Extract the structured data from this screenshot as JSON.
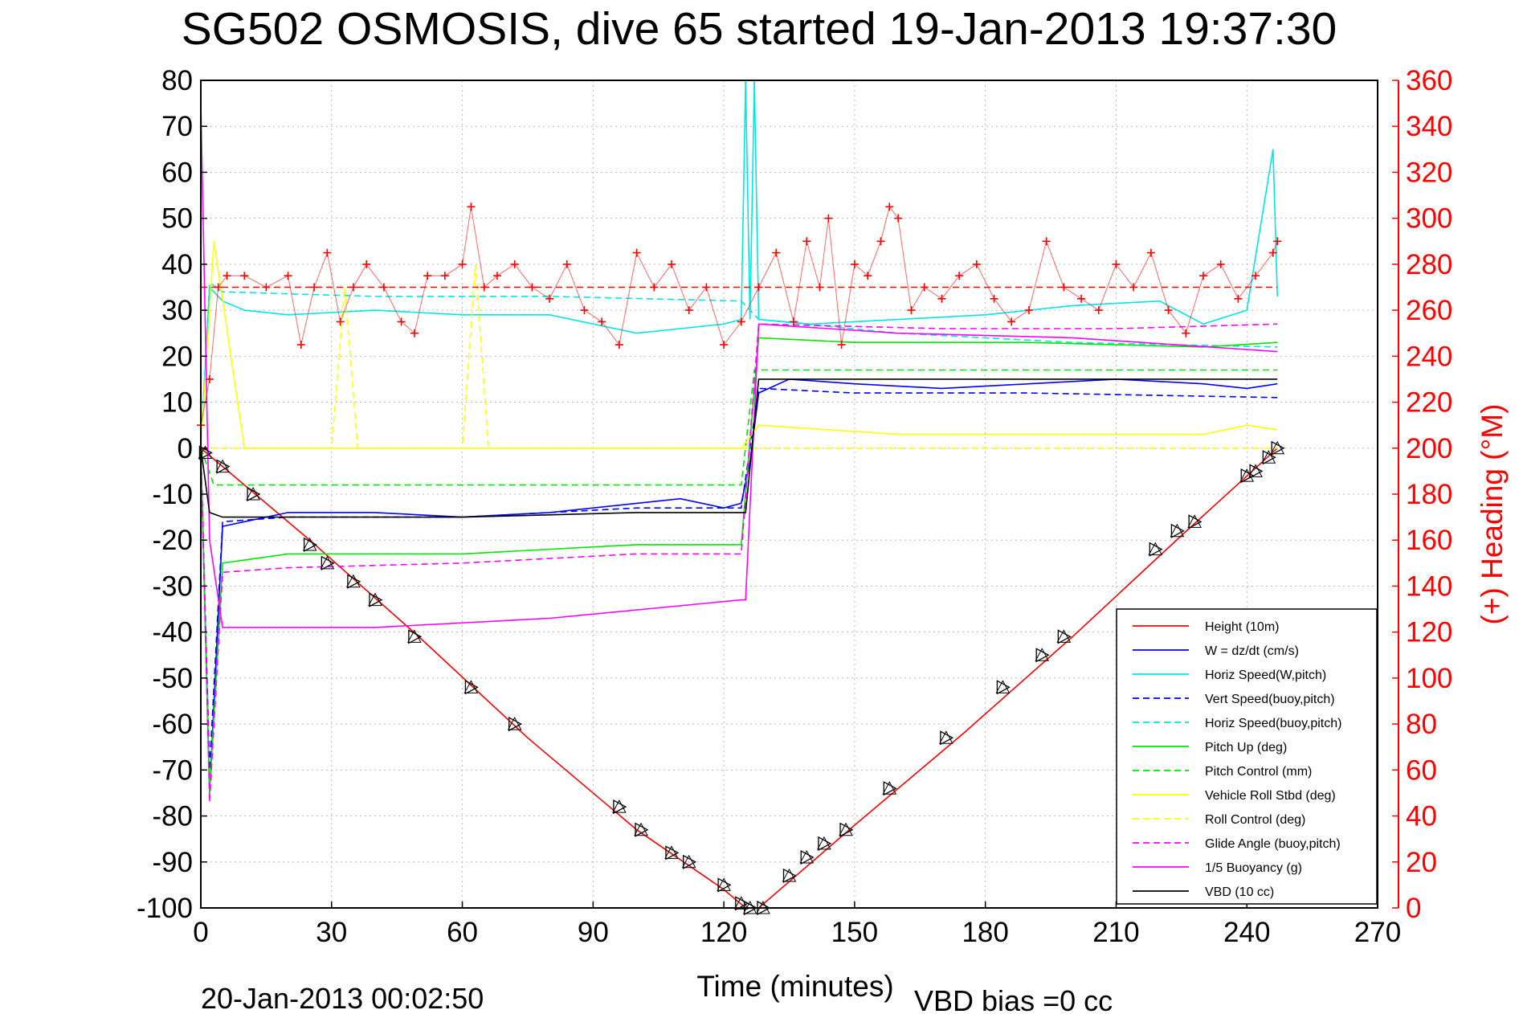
{
  "chart_data": {
    "type": "line",
    "title": "SG502 OSMOSIS, dive 65 started 19-Jan-2013 19:37:30",
    "xlabel": "Time (minutes)",
    "ylabel": "",
    "y2label": "(+) Heading (°M)",
    "xlim": [
      0,
      270
    ],
    "ylim": [
      -100,
      80
    ],
    "y2lim": [
      0,
      360
    ],
    "xticks": [
      0,
      30,
      60,
      90,
      120,
      150,
      180,
      210,
      240,
      270
    ],
    "yticks": [
      80,
      70,
      60,
      50,
      40,
      30,
      20,
      10,
      0,
      -10,
      -20,
      -30,
      -40,
      -50,
      -60,
      -70,
      -80,
      -90,
      -100
    ],
    "y2ticks": [
      360,
      340,
      320,
      300,
      280,
      260,
      240,
      220,
      200,
      180,
      160,
      140,
      120,
      100,
      80,
      60,
      40,
      20,
      0
    ],
    "grid": true,
    "legend_position": "bottom-right",
    "end_time": "20-Jan-2013 00:02:50",
    "vbd_bias": "VBD bias =0 cc",
    "colors": {
      "height": "#ff0000",
      "w": "#0000ff",
      "horiz_speed": "#00e5e5",
      "pitch": "#00e600",
      "roll": "#ffff00",
      "glide": "#ff00ff",
      "vbd": "#000000",
      "heading": "#ff0000"
    },
    "series": [
      {
        "name": "Height (10m)",
        "color": "#ff0000",
        "dash": "solid",
        "x": [
          0,
          25,
          50,
          75,
          100,
          120,
          125,
          128,
          150,
          175,
          200,
          225,
          247
        ],
        "y": [
          0,
          -20,
          -41,
          -63,
          -83,
          -96,
          -100,
          -100,
          -82,
          -62,
          -41,
          -19,
          0
        ]
      },
      {
        "name": "W = dz/dt (cm/s)",
        "color": "#0000ff",
        "dash": "solid",
        "x": [
          0,
          2,
          5,
          10,
          20,
          40,
          60,
          80,
          100,
          110,
          120,
          124,
          126,
          128,
          135,
          150,
          170,
          190,
          210,
          230,
          240,
          247
        ],
        "y": [
          0,
          -75,
          -17,
          -16,
          -14,
          -14,
          -15,
          -14,
          -12,
          -11,
          -13,
          -12,
          -3,
          12,
          15,
          14,
          13,
          14,
          15,
          14,
          13,
          14
        ]
      },
      {
        "name": "Horiz Speed(W,pitch)",
        "color": "#00e5e5",
        "dash": "solid",
        "x": [
          0,
          2,
          5,
          10,
          20,
          40,
          60,
          80,
          100,
          110,
          120,
          124,
          125,
          126,
          127,
          128,
          140,
          160,
          180,
          200,
          220,
          230,
          240,
          246,
          247
        ],
        "y": [
          0,
          35,
          32,
          30,
          29,
          30,
          29,
          29,
          25,
          26,
          27,
          28,
          80,
          28,
          80,
          28,
          27,
          28,
          29,
          31,
          32,
          27,
          30,
          65,
          33
        ]
      },
      {
        "name": "Vert Speed(buoy,pitch)",
        "color": "#0000ff",
        "dash": "dashed",
        "x": [
          0,
          2,
          5,
          20,
          60,
          100,
          124,
          128,
          150,
          190,
          247
        ],
        "y": [
          0,
          -70,
          -16,
          -15,
          -15,
          -13,
          -13,
          13,
          12,
          12,
          11
        ]
      },
      {
        "name": "Horiz Speed(buoy,pitch)",
        "color": "#00e5e5",
        "dash": "dashed",
        "x": [
          0,
          2,
          5,
          40,
          80,
          124,
          128,
          160,
          200,
          247
        ],
        "y": [
          0,
          36,
          34,
          33,
          33,
          32,
          28,
          25,
          23,
          22
        ]
      },
      {
        "name": "Pitch Up (deg)",
        "color": "#00e600",
        "dash": "solid",
        "x": [
          0,
          2,
          5,
          20,
          60,
          100,
          124,
          128,
          150,
          190,
          230,
          247
        ],
        "y": [
          0,
          -75,
          -25,
          -23,
          -23,
          -21,
          -21,
          24,
          23,
          23,
          22,
          23
        ]
      },
      {
        "name": "Pitch Control (mm)",
        "color": "#00e600",
        "dash": "dashed",
        "x": [
          0,
          3,
          124,
          127,
          247
        ],
        "y": [
          0,
          -8,
          -8,
          17,
          17
        ]
      },
      {
        "name": "Vehicle Roll Stbd (deg)",
        "color": "#ffff00",
        "dash": "solid",
        "x": [
          0,
          3,
          10,
          30,
          60,
          90,
          124,
          128,
          160,
          200,
          230,
          240,
          247
        ],
        "y": [
          0,
          45,
          0,
          0,
          0,
          0,
          0,
          5,
          3,
          3,
          3,
          5,
          4
        ]
      },
      {
        "name": "Roll Control (deg)",
        "color": "#ffff00",
        "dash": "dashed",
        "x": [
          0,
          5,
          30,
          33,
          36,
          60,
          63,
          66,
          124,
          128,
          160,
          200,
          247
        ],
        "y": [
          0,
          0,
          0,
          35,
          0,
          0,
          40,
          0,
          0,
          0,
          0,
          0,
          0
        ]
      },
      {
        "name": "Glide Angle (buoy,pitch)",
        "color": "#ff00ff",
        "dash": "dashed",
        "x": [
          0,
          2,
          5,
          20,
          60,
          100,
          124,
          128,
          170,
          210,
          247
        ],
        "y": [
          0,
          -77,
          -27,
          -26,
          -25,
          -23,
          -23,
          27,
          26,
          26,
          27
        ]
      },
      {
        "name": "1/5 Buoyancy (g)",
        "color": "#ff00ff",
        "dash": "solid",
        "x": [
          0,
          2,
          5,
          40,
          80,
          124,
          125,
          128,
          160,
          200,
          247
        ],
        "y": [
          75,
          -20,
          -39,
          -39,
          -37,
          -33,
          -33,
          27,
          25,
          24,
          21
        ]
      },
      {
        "name": "VBD (10 cc)",
        "color": "#000000",
        "dash": "solid",
        "x": [
          0,
          2,
          5,
          30,
          60,
          100,
          124,
          125,
          128,
          200,
          247
        ],
        "y": [
          0,
          -14,
          -15,
          -15,
          -15,
          -14,
          -14,
          -14,
          15,
          15,
          15
        ]
      },
      {
        "name": "(+) Heading",
        "color": "#ff0000",
        "axis": "right",
        "marker": "+",
        "x": [
          0,
          2,
          4,
          6,
          10,
          15,
          20,
          23,
          26,
          29,
          32,
          35,
          38,
          42,
          46,
          49,
          52,
          56,
          60,
          62,
          65,
          68,
          72,
          76,
          80,
          84,
          88,
          92,
          96,
          100,
          104,
          108,
          112,
          116,
          120,
          124,
          128,
          132,
          136,
          139,
          142,
          144,
          147,
          150,
          153,
          156,
          158,
          160,
          163,
          166,
          170,
          174,
          178,
          182,
          186,
          190,
          194,
          198,
          202,
          206,
          210,
          214,
          218,
          222,
          226,
          230,
          234,
          238,
          242,
          246,
          247
        ],
        "y": [
          210,
          230,
          270,
          275,
          275,
          270,
          275,
          245,
          270,
          285,
          255,
          270,
          280,
          270,
          255,
          250,
          275,
          275,
          280,
          305,
          270,
          275,
          280,
          270,
          265,
          280,
          260,
          255,
          245,
          285,
          270,
          280,
          260,
          270,
          245,
          255,
          270,
          285,
          255,
          290,
          270,
          300,
          245,
          280,
          275,
          290,
          305,
          300,
          260,
          270,
          265,
          275,
          280,
          265,
          255,
          260,
          290,
          270,
          265,
          260,
          280,
          270,
          285,
          260,
          250,
          275,
          280,
          265,
          275,
          285,
          290
        ]
      },
      {
        "name": "Heading mean",
        "color": "#ff0000",
        "axis": "right",
        "dash": "dashed",
        "x": [
          0,
          247
        ],
        "y": [
          270,
          270
        ]
      }
    ],
    "markers": {
      "name": "Sample markers",
      "color": "#000000",
      "x": [
        1,
        5,
        12,
        25,
        29,
        35,
        40,
        49,
        62,
        72,
        96,
        101,
        108,
        112,
        120,
        124,
        126,
        129,
        135,
        139,
        143,
        148,
        158,
        171,
        184,
        193,
        198,
        219,
        224,
        228,
        240,
        242,
        245,
        247
      ],
      "y": [
        -1,
        -4,
        -10,
        -21,
        -25,
        -29,
        -33,
        -41,
        -52,
        -60,
        -78,
        -83,
        -88,
        -90,
        -95,
        -99,
        -100,
        -100,
        -93,
        -89,
        -86,
        -83,
        -74,
        -63,
        -52,
        -45,
        -41,
        -22,
        -18,
        -16,
        -6,
        -5,
        -2,
        0
      ]
    }
  }
}
